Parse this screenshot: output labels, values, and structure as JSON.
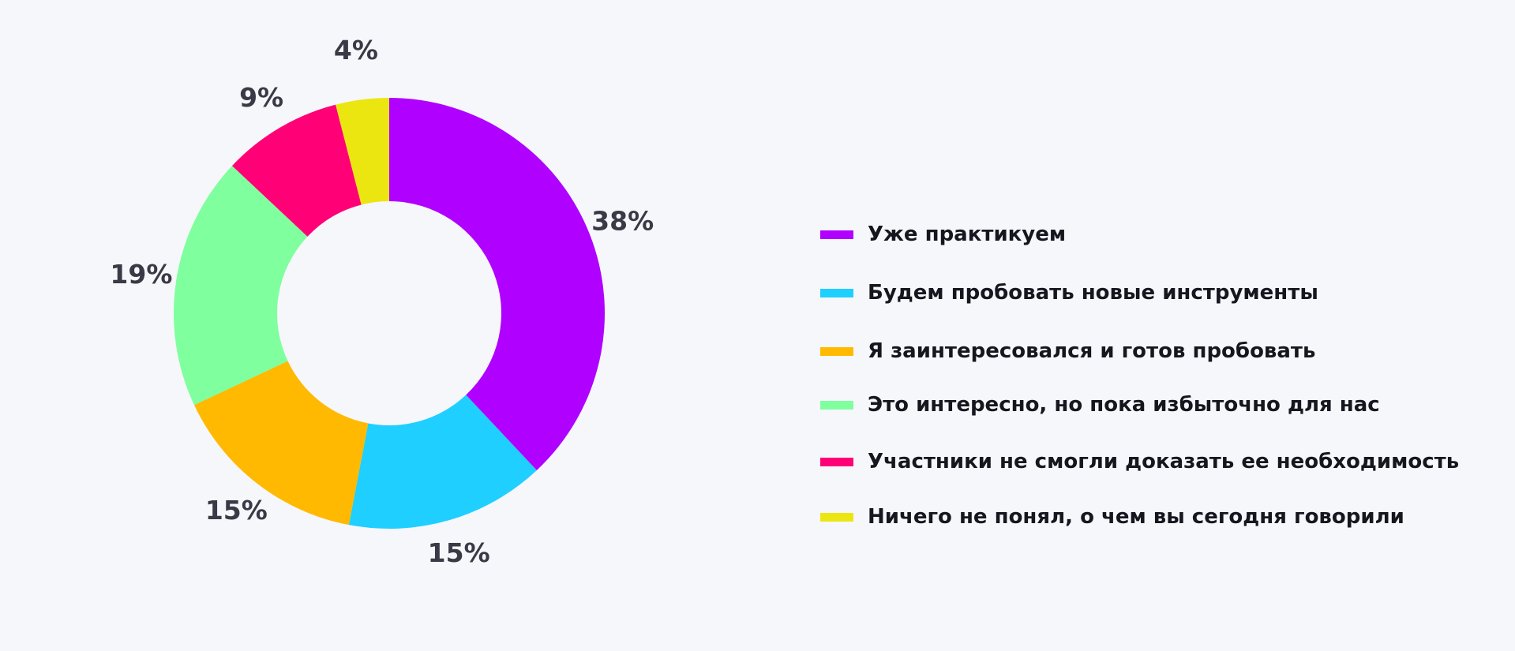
{
  "chart_data": {
    "type": "pie",
    "donut": true,
    "title": "",
    "categories": [
      "Уже практикуем",
      "Будем пробовать новые инструменты",
      "Я заинтересовался и готов пробовать",
      "Это интересно, но пока избыточно для нас",
      "Участники не смогли доказать ее необходимость",
      "Ничего не понял, о чем вы сегодня говорили"
    ],
    "values": [
      38,
      15,
      15,
      19,
      9,
      4
    ],
    "labels": [
      "38%",
      "15%",
      "15%",
      "19%",
      "9%",
      "4%"
    ],
    "colors": [
      "#b000ff",
      "#1fcfff",
      "#ffb900",
      "#80ff9e",
      "#ff0077",
      "#ece610"
    ],
    "legend_position": "right"
  }
}
